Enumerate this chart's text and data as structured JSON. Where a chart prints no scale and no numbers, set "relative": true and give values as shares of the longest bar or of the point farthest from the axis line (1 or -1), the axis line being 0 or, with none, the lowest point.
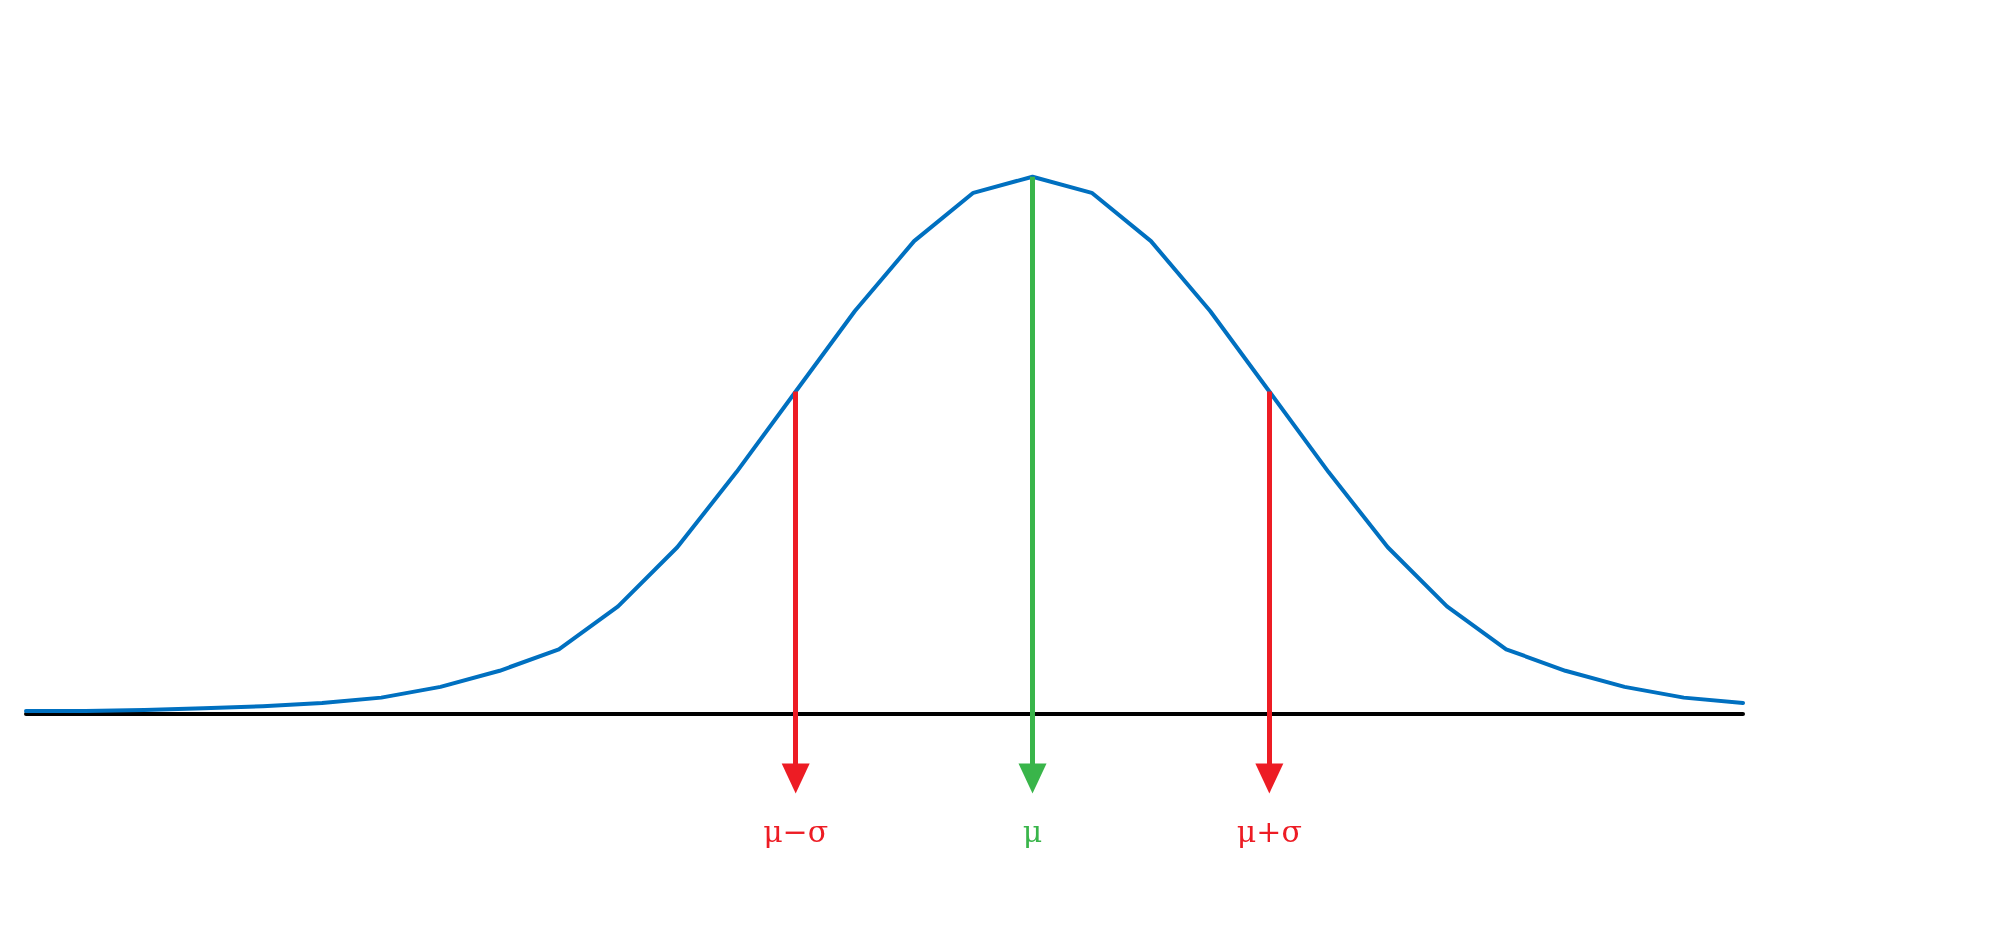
{
  "chart_data": {
    "type": "line",
    "relative": true,
    "color": "#0070c0",
    "tick_labels": "x",
    "grid": false,
    "marker": "none",
    "line_style": "solid",
    "categories": [
      null,
      null,
      null,
      null,
      null,
      null,
      null,
      null,
      null,
      null,
      null,
      null,
      null,
      "μ−σ",
      null,
      null,
      null,
      "μ",
      null,
      null,
      null,
      "μ+σ",
      null,
      null,
      null,
      null,
      null,
      null,
      null,
      null
    ],
    "values": [
      0.005,
      0.005,
      0.007,
      0.01,
      0.014,
      0.02,
      0.03,
      0.05,
      0.08,
      0.12,
      0.2,
      0.31,
      0.45,
      0.6,
      0.75,
      0.88,
      0.97,
      1,
      0.97,
      0.88,
      0.75,
      0.6,
      0.45,
      0.31,
      0.2,
      0.12,
      0.08,
      0.05,
      0.03,
      0.02
    ],
    "ref_lines": [
      {
        "axis": "x",
        "value": "μ−σ",
        "color": "#ed1c24"
      },
      {
        "axis": "x",
        "value": "μ",
        "color": "#39b54a"
      },
      {
        "axis": "x",
        "value": "μ+σ",
        "color": "#ed1c24"
      }
    ]
  }
}
